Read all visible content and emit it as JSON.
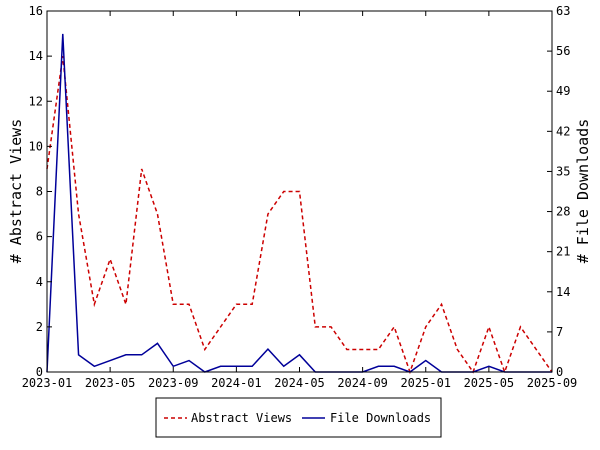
{
  "chart_data": {
    "type": "line",
    "x": [
      "2023-01",
      "2023-02",
      "2023-03",
      "2023-04",
      "2023-05",
      "2023-06",
      "2023-07",
      "2023-08",
      "2023-09",
      "2023-10",
      "2023-11",
      "2023-12",
      "2024-01",
      "2024-02",
      "2024-03",
      "2024-04",
      "2024-05",
      "2024-06",
      "2024-07",
      "2024-08",
      "2024-09",
      "2024-10",
      "2024-11",
      "2024-12",
      "2025-01",
      "2025-02",
      "2025-03",
      "2025-04",
      "2025-05",
      "2025-06",
      "2025-07",
      "2025-08",
      "2025-09"
    ],
    "series": [
      {
        "name": "Abstract Views",
        "axis": "left",
        "color": "#cc0000",
        "dash": true,
        "values": [
          9,
          14,
          7,
          3,
          5,
          3,
          9,
          7,
          3,
          3,
          1,
          2,
          3,
          3,
          7,
          8,
          8,
          2,
          2,
          1,
          1,
          1,
          2,
          0,
          2,
          3,
          1,
          0,
          2,
          0,
          2,
          1,
          0
        ]
      },
      {
        "name": "File Downloads",
        "axis": "right",
        "color": "#000099",
        "dash": false,
        "values": [
          0,
          59,
          3,
          1,
          2,
          3,
          3,
          5,
          1,
          2,
          0,
          1,
          1,
          1,
          4,
          1,
          3,
          0,
          0,
          0,
          0,
          1,
          1,
          0,
          2,
          0,
          0,
          0,
          1,
          0,
          0,
          0,
          0
        ]
      }
    ],
    "ylabel": "# Abstract Views",
    "y2label": "# File Downloads",
    "ylim": [
      0,
      16
    ],
    "y2lim": [
      0,
      63
    ],
    "yticks": [
      0,
      2,
      4,
      6,
      8,
      10,
      12,
      14,
      16
    ],
    "y2ticks": [
      0,
      7,
      14,
      21,
      28,
      35,
      42,
      49,
      56,
      63
    ],
    "xticks": [
      {
        "index": 0,
        "label": "2023-01"
      },
      {
        "index": 4,
        "label": "2023-05"
      },
      {
        "index": 8,
        "label": "2023-09"
      },
      {
        "index": 12,
        "label": "2024-01"
      },
      {
        "index": 16,
        "label": "2024-05"
      },
      {
        "index": 20,
        "label": "2024-09"
      },
      {
        "index": 24,
        "label": "2025-01"
      },
      {
        "index": 28,
        "label": "2025-05"
      },
      {
        "index": 32,
        "label": "2025-09"
      }
    ],
    "legend_position": "bottom",
    "grid": false
  }
}
